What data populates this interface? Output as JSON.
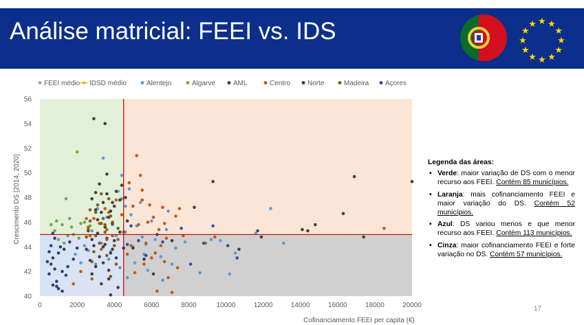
{
  "slide": {
    "title": "Análise matricial: FEEI vs. IDS",
    "page_number": "17"
  },
  "colors": {
    "header_bg": "#0b2f8a",
    "green_area": "#e2f0d9",
    "orange_area": "#fbe5d6",
    "blue_area": "#dae3f3",
    "gray_area": "#d0d0d0",
    "feei_line": "#c00000",
    "ids_line": "#c00000"
  },
  "legend_box": {
    "heading": "Legenda das áreas:",
    "items": [
      {
        "name": "Verde",
        "text": ": maior variação de DS com o menor recurso aos FEEI. ",
        "link": "Contém 85 municípios."
      },
      {
        "name": "Laranja",
        "text": ": mais cofinanciamento FEEI e maior variação do DS. ",
        "link": "Contém 52 municípios."
      },
      {
        "name": "Azul",
        "text": ": DS variou menos e que menor recurso aos FEEI. ",
        "link": "Contém 113 municípios."
      },
      {
        "name": "Cinza",
        "text": ": maior cofinanciamento FEEI e forte variação no DS. ",
        "link": "Contém 57 municípios."
      }
    ]
  },
  "chart_data": {
    "type": "scatter",
    "xlabel": "Cofinanciamento FEEI per capita (€)",
    "ylabel": "Crescimento DS [2014, 2020]",
    "xlim": [
      0,
      20000
    ],
    "ylim": [
      40,
      56
    ],
    "x_ticks": [
      0,
      2000,
      4000,
      6000,
      8000,
      10000,
      12000,
      14000,
      16000,
      18000,
      20000
    ],
    "y_ticks": [
      40,
      42,
      44,
      46,
      48,
      50,
      52,
      54,
      56
    ],
    "grid": false,
    "legend_position": "top",
    "feei_medio": 4500,
    "idsd_medio": 45,
    "legend": [
      {
        "name": "FEEI médio",
        "color": "#a6a6a6",
        "marker": "dot"
      },
      {
        "name": "IDSD médio",
        "color": "#f0b400",
        "marker": "line"
      },
      {
        "name": "Alentejo",
        "color": "#5b9bd5",
        "marker": "dot"
      },
      {
        "name": "Algarve",
        "color": "#70ad47",
        "marker": "dot"
      },
      {
        "name": "AML",
        "color": "#264478",
        "marker": "dot"
      },
      {
        "name": "Centro",
        "color": "#c55a11",
        "marker": "dot"
      },
      {
        "name": "Norte",
        "color": "#404040",
        "marker": "dot"
      },
      {
        "name": "Madeira",
        "color": "#8a5a18",
        "marker": "dot"
      },
      {
        "name": "Açores",
        "color": "#2f4f9e",
        "marker": "dot"
      }
    ],
    "series": [
      {
        "name": "Alentejo",
        "color": "#5b9bd5",
        "points": [
          [
            3400,
            51.2
          ],
          [
            4400,
            49.8
          ],
          [
            4200,
            48.5
          ],
          [
            4600,
            47.3
          ],
          [
            4900,
            46.6
          ],
          [
            5200,
            45.7
          ],
          [
            5500,
            44.8
          ],
          [
            5700,
            44.2
          ],
          [
            6200,
            44.6
          ],
          [
            6800,
            45.4
          ],
          [
            7300,
            43.9
          ],
          [
            5100,
            42.7
          ],
          [
            5800,
            42.1
          ],
          [
            4700,
            41.5
          ],
          [
            3700,
            43.0
          ],
          [
            3300,
            44.3
          ],
          [
            2600,
            43.7
          ],
          [
            3000,
            42.6
          ],
          [
            4100,
            44.9
          ],
          [
            6500,
            43.2
          ],
          [
            7800,
            44.4
          ],
          [
            8600,
            41.9
          ],
          [
            9200,
            44.6
          ],
          [
            10200,
            41.8
          ],
          [
            12400,
            47.1
          ],
          [
            13100,
            44.3
          ],
          [
            11600,
            45.1
          ],
          [
            5400,
            47.6
          ],
          [
            4800,
            48.7
          ],
          [
            3900,
            45.8
          ],
          [
            2800,
            45.3
          ],
          [
            2400,
            44.1
          ],
          [
            6000,
            46.1
          ],
          [
            5600,
            43.4
          ],
          [
            4300,
            42.3
          ],
          [
            7100,
            42.6
          ],
          [
            6600,
            41.3
          ],
          [
            3600,
            46.4
          ],
          [
            4400,
            47.9
          ],
          [
            5000,
            44.0
          ],
          [
            9700,
            44.5
          ],
          [
            10500,
            43.5
          ],
          [
            3800,
            43.6
          ],
          [
            4600,
            45.2
          ],
          [
            6900,
            46.9
          ],
          [
            2200,
            42.7
          ],
          [
            1900,
            43.4
          ],
          [
            3100,
            47.1
          ]
        ]
      },
      {
        "name": "Algarve",
        "color": "#70ad47",
        "points": [
          [
            2000,
            51.7
          ],
          [
            1400,
            47.9
          ],
          [
            1600,
            46.3
          ],
          [
            1200,
            45.8
          ],
          [
            800,
            45.3
          ],
          [
            1800,
            45.0
          ],
          [
            2400,
            46.0
          ],
          [
            2200,
            45.9
          ],
          [
            1000,
            44.6
          ],
          [
            1500,
            44.9
          ],
          [
            900,
            46.1
          ],
          [
            2100,
            44.7
          ],
          [
            1700,
            45.6
          ],
          [
            2700,
            45.7
          ],
          [
            1300,
            44.3
          ],
          [
            600,
            45.8
          ]
        ]
      },
      {
        "name": "AML",
        "color": "#264478",
        "points": [
          [
            500,
            41.8
          ],
          [
            700,
            43.1
          ],
          [
            800,
            42.2
          ],
          [
            600,
            44.1
          ],
          [
            900,
            40.8
          ],
          [
            1200,
            40.4
          ],
          [
            1000,
            43.5
          ],
          [
            400,
            42.8
          ],
          [
            1100,
            44.0
          ],
          [
            700,
            45.1
          ],
          [
            1500,
            42.4
          ],
          [
            1400,
            41.7
          ],
          [
            800,
            44.7
          ],
          [
            1300,
            43.8
          ],
          [
            500,
            43.6
          ],
          [
            1600,
            44.4
          ],
          [
            900,
            41.2
          ],
          [
            1000,
            40.6
          ],
          [
            600,
            42.6
          ],
          [
            1200,
            42.0
          ],
          [
            700,
            40.9
          ],
          [
            1800,
            43.0
          ],
          [
            2000,
            43.9
          ]
        ]
      },
      {
        "name": "Centro",
        "color": "#c55a11",
        "points": [
          [
            5200,
            51.4
          ],
          [
            5400,
            49.8
          ],
          [
            5500,
            48.6
          ],
          [
            4800,
            49.2
          ],
          [
            5000,
            47.3
          ],
          [
            5900,
            47.4
          ],
          [
            6600,
            47.2
          ],
          [
            7300,
            46.5
          ],
          [
            7500,
            47.1
          ],
          [
            6100,
            46.4
          ],
          [
            5800,
            46.0
          ],
          [
            5300,
            45.8
          ],
          [
            6400,
            45.4
          ],
          [
            6800,
            44.7
          ],
          [
            5700,
            44.3
          ],
          [
            4900,
            44.1
          ],
          [
            4200,
            44.6
          ],
          [
            3900,
            44.9
          ],
          [
            3600,
            45.4
          ],
          [
            3200,
            45.9
          ],
          [
            2900,
            46.3
          ],
          [
            2500,
            46.3
          ],
          [
            3500,
            47.1
          ],
          [
            4100,
            47.8
          ],
          [
            4400,
            46.6
          ],
          [
            6200,
            43.5
          ],
          [
            6700,
            42.8
          ],
          [
            7400,
            42.3
          ],
          [
            5600,
            42.6
          ],
          [
            5100,
            41.9
          ],
          [
            6900,
            41.5
          ],
          [
            7100,
            40.3
          ],
          [
            6300,
            40.4
          ],
          [
            6000,
            43.1
          ],
          [
            8900,
            44.3
          ],
          [
            9400,
            44.8
          ],
          [
            18500,
            45.5
          ],
          [
            7700,
            44.9
          ],
          [
            6500,
            44.1
          ],
          [
            4500,
            45.2
          ],
          [
            3700,
            46.8
          ],
          [
            2700,
            44.9
          ],
          [
            2200,
            42.0
          ],
          [
            1800,
            41.0
          ],
          [
            2800,
            41.4
          ],
          [
            5500,
            47.8
          ],
          [
            6700,
            45.9
          ],
          [
            4700,
            43.4
          ],
          [
            3300,
            43.8
          ],
          [
            2600,
            45.6
          ]
        ]
      },
      {
        "name": "Norte",
        "color": "#404040",
        "points": [
          [
            2900,
            54.4
          ],
          [
            3500,
            54.0
          ],
          [
            3200,
            49.1
          ],
          [
            3000,
            48.4
          ],
          [
            3600,
            48.3
          ],
          [
            2800,
            47.9
          ],
          [
            3400,
            47.6
          ],
          [
            4000,
            47.3
          ],
          [
            3300,
            46.8
          ],
          [
            3700,
            46.4
          ],
          [
            3900,
            45.9
          ],
          [
            4300,
            45.2
          ],
          [
            3100,
            45.1
          ],
          [
            2800,
            44.6
          ],
          [
            3500,
            44.2
          ],
          [
            3900,
            43.8
          ],
          [
            4100,
            43.1
          ],
          [
            3400,
            42.7
          ],
          [
            3000,
            42.4
          ],
          [
            2800,
            41.8
          ],
          [
            3700,
            41.4
          ],
          [
            3300,
            41.0
          ],
          [
            3800,
            40.1
          ],
          [
            4200,
            40.7
          ],
          [
            5000,
            43.9
          ],
          [
            5600,
            43.0
          ],
          [
            6100,
            41.8
          ],
          [
            7100,
            44.5
          ],
          [
            8300,
            47.2
          ],
          [
            9300,
            49.3
          ],
          [
            14100,
            45.4
          ],
          [
            14400,
            45.3
          ],
          [
            14800,
            45.8
          ],
          [
            16300,
            46.7
          ],
          [
            16900,
            49.7
          ],
          [
            17400,
            44.8
          ],
          [
            20000,
            49.3
          ],
          [
            4600,
            48.0
          ],
          [
            4700,
            46.1
          ],
          [
            3600,
            44.7
          ],
          [
            2500,
            43.8
          ],
          [
            3800,
            46.9
          ],
          [
            4400,
            49.0
          ],
          [
            3200,
            43.2
          ],
          [
            3700,
            42.1
          ],
          [
            4000,
            44.5
          ],
          [
            3100,
            46.2
          ],
          [
            2600,
            45.3
          ],
          [
            4300,
            47.8
          ],
          [
            3500,
            45.6
          ],
          [
            2900,
            44.1
          ],
          [
            3800,
            43.5
          ],
          [
            4100,
            48.5
          ],
          [
            3600,
            49.9
          ],
          [
            3000,
            47.0
          ],
          [
            3400,
            44.0
          ],
          [
            3900,
            47.6
          ],
          [
            2700,
            42.9
          ],
          [
            4500,
            43.9
          ],
          [
            10700,
            43.8
          ],
          [
            11900,
            44.8
          ]
        ]
      },
      {
        "name": "Madeira",
        "color": "#8a5a18",
        "points": [
          [
            2700,
            46.1
          ],
          [
            3000,
            46.8
          ],
          [
            3300,
            45.9
          ],
          [
            2600,
            45.4
          ],
          [
            3500,
            45.2
          ],
          [
            3800,
            46.5
          ],
          [
            3200,
            44.3
          ],
          [
            2900,
            43.6
          ],
          [
            3600,
            43.3
          ],
          [
            4000,
            44.1
          ],
          [
            3100,
            47.4
          ],
          [
            3900,
            46.0
          ],
          [
            3700,
            47.9
          ],
          [
            4200,
            45.5
          ],
          [
            2800,
            42.8
          ],
          [
            3400,
            46.3
          ],
          [
            3600,
            44.6
          ],
          [
            2500,
            44.8
          ],
          [
            4100,
            42.6
          ],
          [
            3800,
            41.6
          ],
          [
            3000,
            44.9
          ],
          [
            3300,
            48.3
          ],
          [
            2700,
            47.0
          ],
          [
            3500,
            45.8
          ]
        ]
      },
      {
        "name": "Açores",
        "color": "#2f4f9e",
        "points": [
          [
            9300,
            45.7
          ],
          [
            10100,
            44.1
          ],
          [
            10600,
            43.1
          ],
          [
            11700,
            45.3
          ],
          [
            6600,
            44.4
          ],
          [
            5700,
            43.3
          ],
          [
            4700,
            44.2
          ],
          [
            7600,
            45.5
          ],
          [
            8100,
            42.6
          ],
          [
            6300,
            45.0
          ],
          [
            5300,
            44.5
          ],
          [
            8800,
            44.3
          ],
          [
            4900,
            45.7
          ]
        ]
      }
    ]
  }
}
